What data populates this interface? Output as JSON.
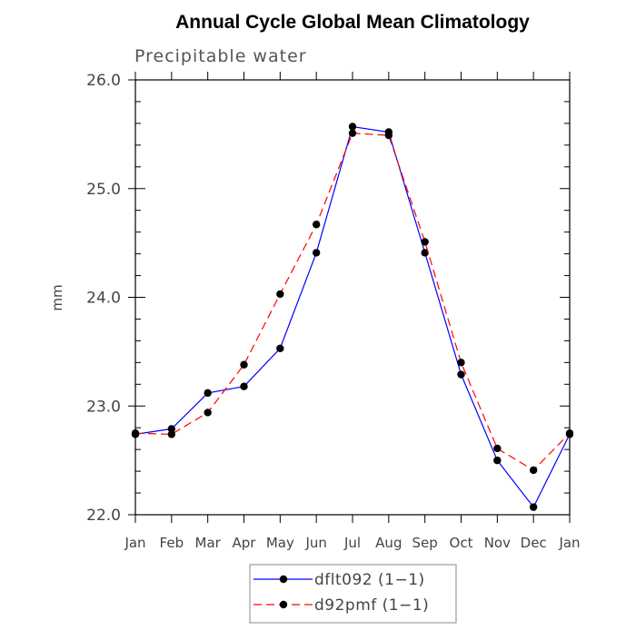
{
  "chart_data": {
    "type": "line",
    "title": "Annual Cycle Global Mean Climatology",
    "subtitle": "Precipitable water",
    "ylabel": "mm",
    "xlabel": "",
    "ylim": [
      22.0,
      26.0
    ],
    "yticks": [
      "22.0",
      "23.0",
      "24.0",
      "25.0",
      "26.0"
    ],
    "categories": [
      "Jan",
      "Feb",
      "Mar",
      "Apr",
      "May",
      "Jun",
      "Jul",
      "Aug",
      "Sep",
      "Oct",
      "Nov",
      "Dec",
      "Jan"
    ],
    "series": [
      {
        "name": "dflt092 (1−1)",
        "color": "#0000ff",
        "dash": "solid",
        "values": [
          22.74,
          22.79,
          23.12,
          23.18,
          23.53,
          24.41,
          25.57,
          25.52,
          24.41,
          23.29,
          22.5,
          22.07,
          22.74
        ]
      },
      {
        "name": "d92pmf (1−1)",
        "color": "#ff0000",
        "dash": "dashed",
        "values": [
          22.75,
          22.74,
          22.94,
          23.38,
          24.03,
          24.67,
          25.51,
          25.49,
          24.51,
          23.4,
          22.61,
          22.41,
          22.75
        ]
      }
    ],
    "grid": false,
    "legend": "bottom-center"
  }
}
